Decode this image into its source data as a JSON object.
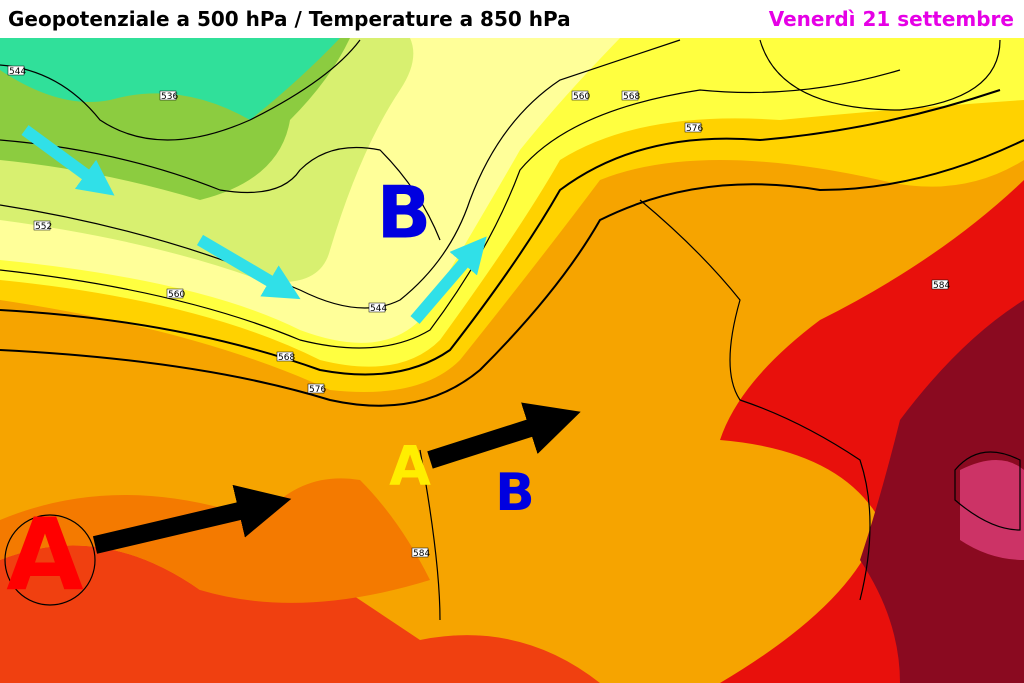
{
  "header": {
    "title": "Geopotenziale a 500 hPa / Temperature a 850 hPa",
    "date": "Venerdì 21 settembre"
  },
  "pressure_centers": [
    {
      "label": "A"
    },
    {
      "label": "B"
    },
    {
      "label": "A"
    },
    {
      "label": "B"
    }
  ],
  "contour_labels": [
    "544",
    "536",
    "552",
    "560",
    "568",
    "576",
    "544",
    "560",
    "568",
    "576",
    "584",
    "584"
  ]
}
